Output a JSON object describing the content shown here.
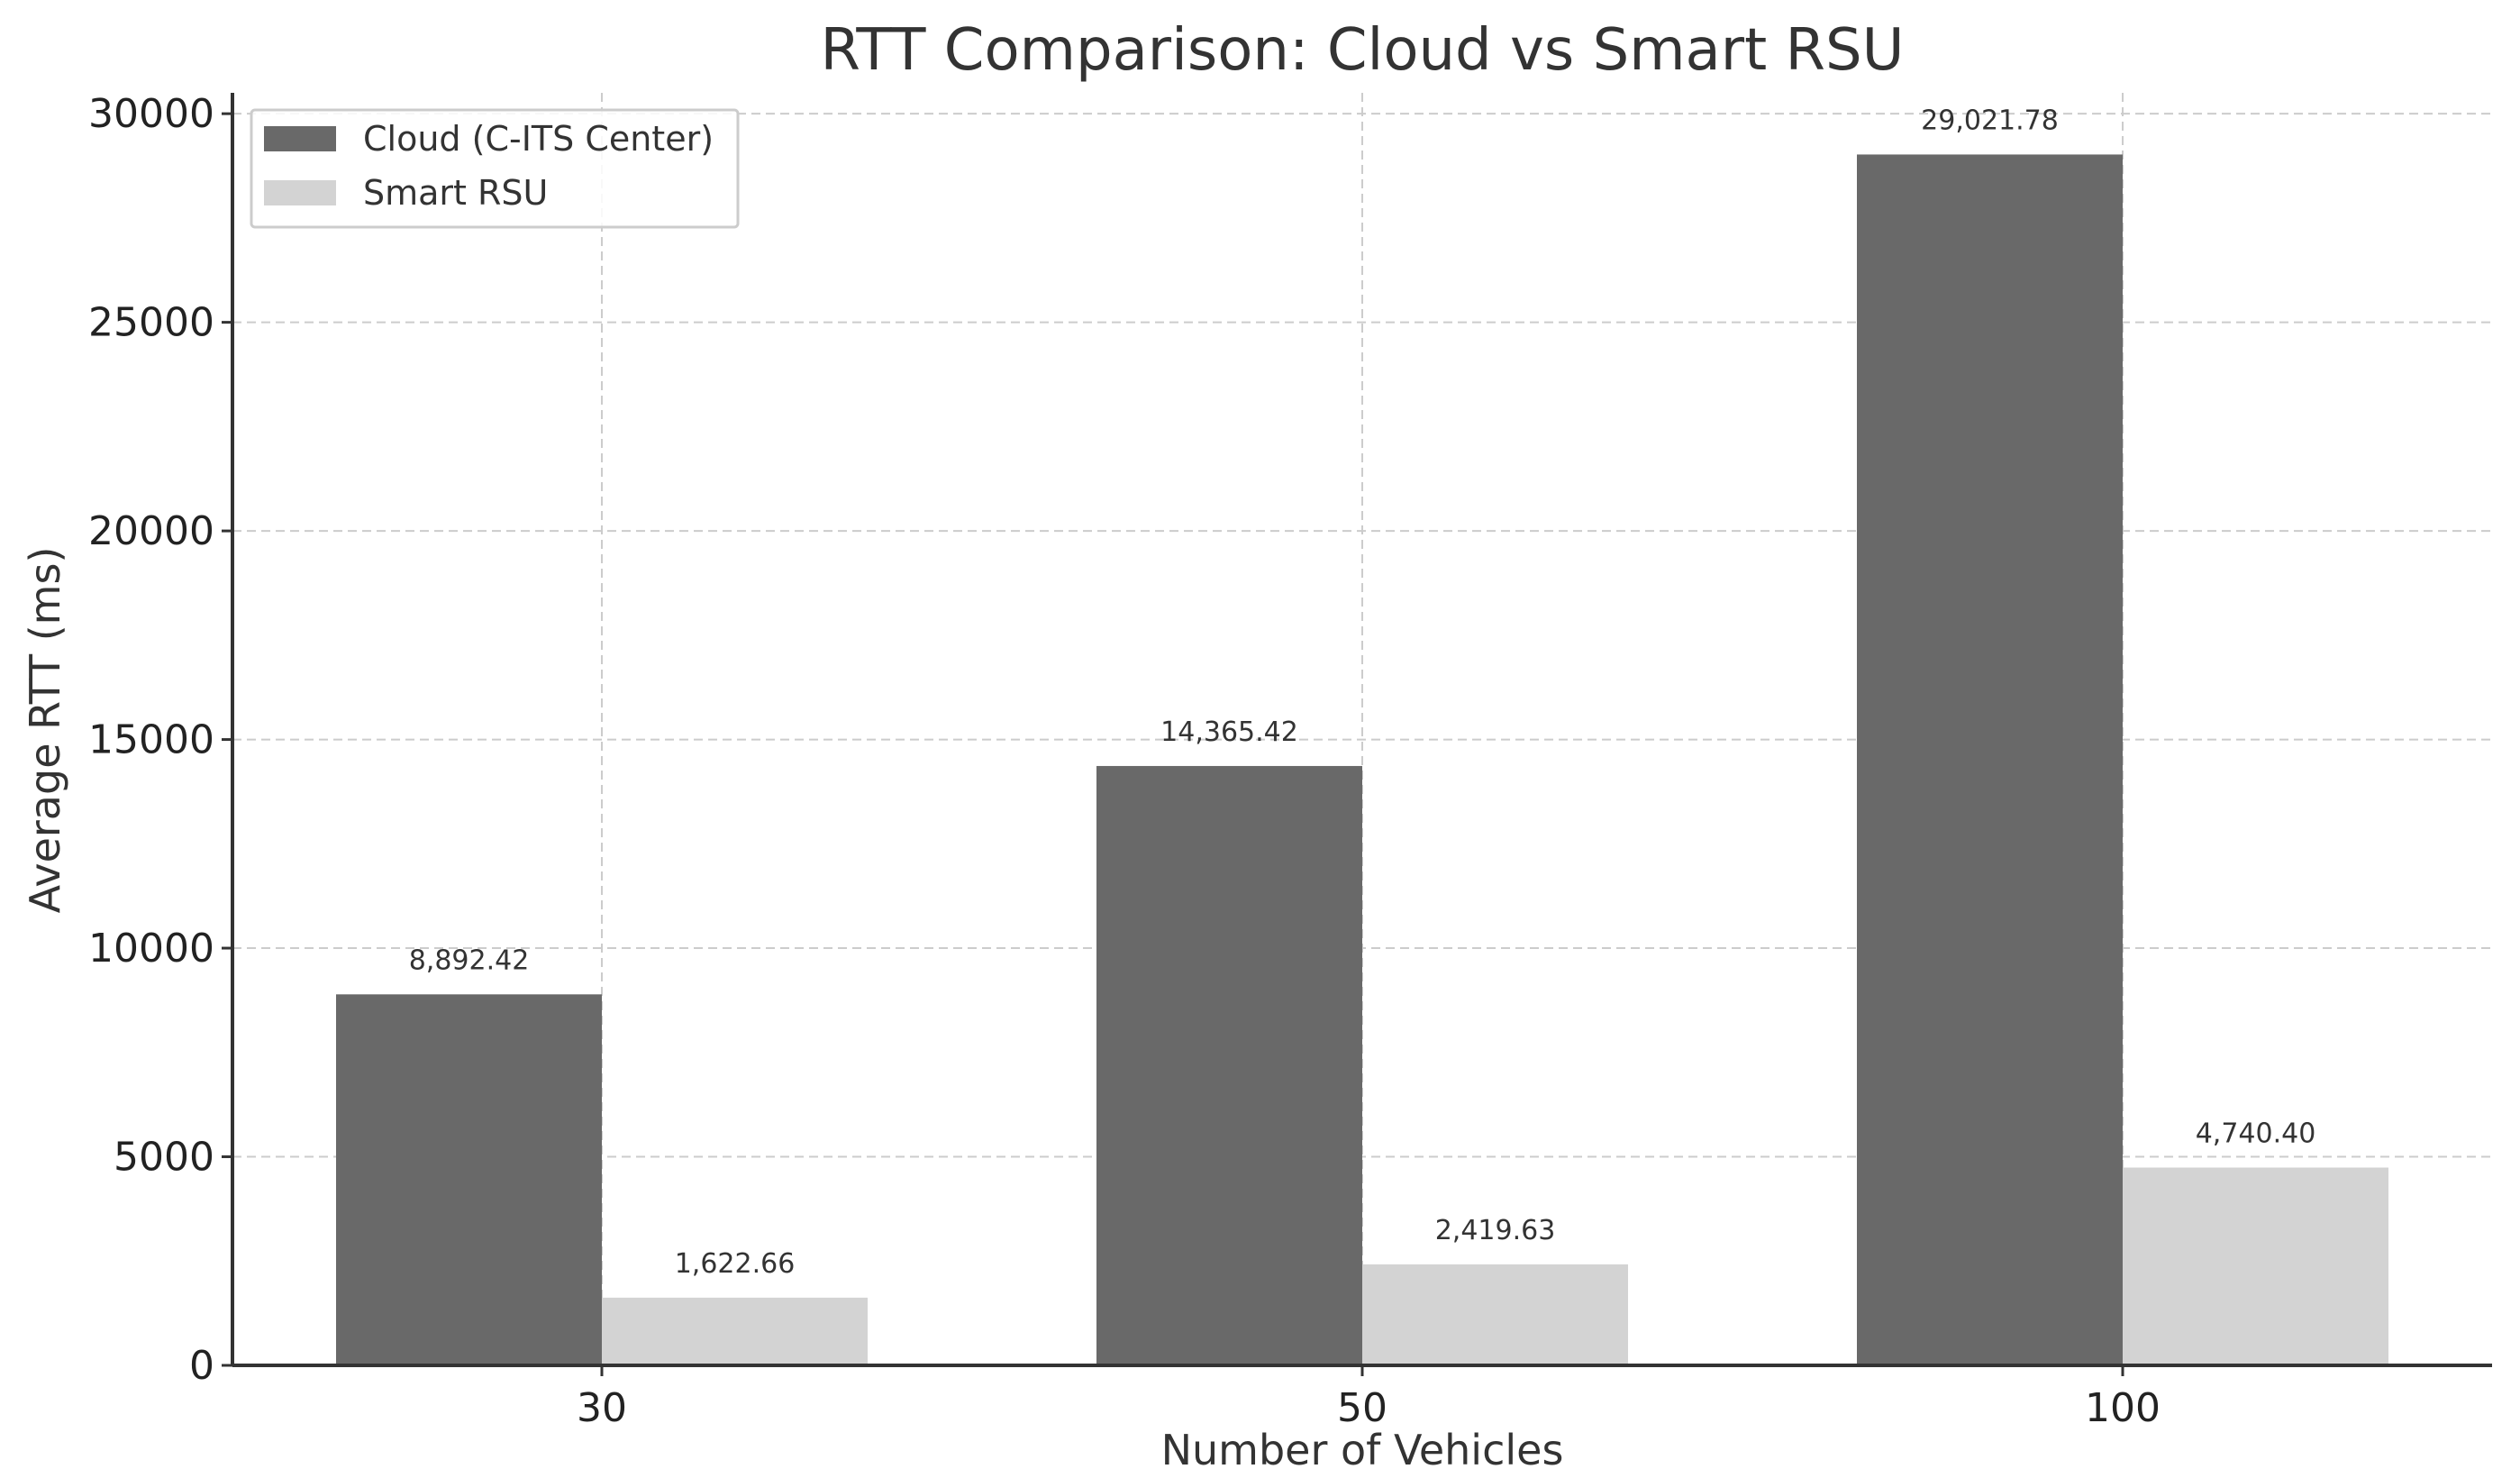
{
  "chart_data": {
    "type": "bar",
    "title": "RTT Comparison: Cloud vs Smart RSU",
    "xlabel": "Number of Vehicles",
    "ylabel": "Average RTT (ms)",
    "categories": [
      "30",
      "50",
      "100"
    ],
    "series": [
      {
        "name": "Cloud (C-ITS Center)",
        "values": [
          8892.42,
          14365.42,
          29021.78
        ],
        "labels": [
          "8,892.42",
          "14,365.42",
          "29,021.78"
        ],
        "color": "#696969"
      },
      {
        "name": "Smart RSU",
        "values": [
          1622.66,
          2419.63,
          4740.4
        ],
        "labels": [
          "1,622.66",
          "2,419.63",
          "4,740.40"
        ],
        "color": "#d3d3d3"
      }
    ],
    "yticks": [
      0,
      5000,
      10000,
      15000,
      20000,
      25000,
      30000
    ],
    "ytick_labels": [
      "0",
      "5000",
      "10000",
      "15000",
      "20000",
      "25000",
      "30000"
    ],
    "ylim": [
      0,
      30500
    ],
    "grid": true,
    "legend_position": "top-left"
  }
}
